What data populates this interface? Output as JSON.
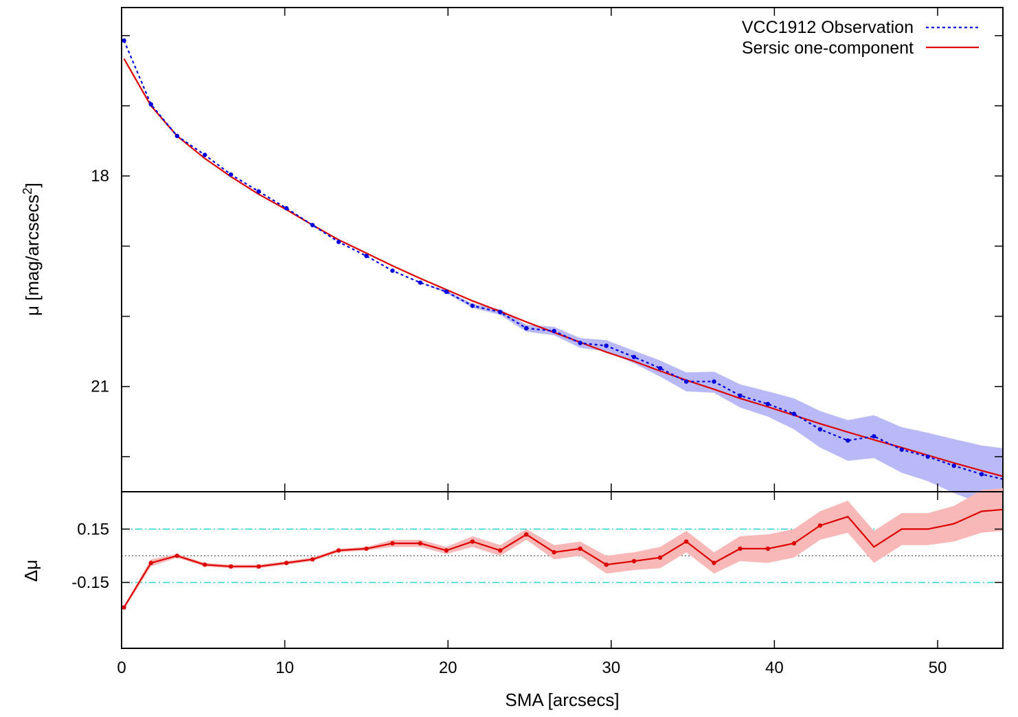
{
  "chart_data": [
    {
      "type": "line",
      "panel": "surface-brightness-profile",
      "ylabel": "μ [mag/arcsecs",
      "ylabel_sup": "2",
      "ylabel_close": "]",
      "xlim": [
        0,
        54
      ],
      "ylim": [
        22.5,
        15.6
      ],
      "y_inverted": true,
      "y_tick_labels": [
        "18",
        "21"
      ],
      "y_ticks": [
        16,
        17,
        18,
        19,
        20,
        21,
        22
      ],
      "y_tick_values": [
        18,
        21
      ],
      "grid": false,
      "legend_position": "top-right",
      "series": [
        {
          "name": "VCC1912 Observation",
          "style": "dotted",
          "color": "#0000dd",
          "x": [
            0.15,
            1.8,
            3.4,
            5.1,
            6.7,
            8.4,
            10.1,
            11.7,
            13.3,
            15.0,
            16.6,
            18.3,
            19.9,
            21.5,
            23.2,
            24.8,
            26.5,
            28.1,
            29.7,
            31.4,
            33.0,
            34.6,
            36.3,
            37.9,
            39.6,
            41.2,
            42.8,
            44.5,
            46.1,
            47.8,
            49.4,
            51.0,
            52.7,
            54.0
          ],
          "y": [
            16.07,
            16.98,
            17.43,
            17.7,
            17.98,
            18.22,
            18.46,
            18.7,
            18.94,
            19.14,
            19.35,
            19.52,
            19.65,
            19.85,
            19.94,
            20.17,
            20.21,
            20.38,
            20.42,
            20.58,
            20.74,
            20.93,
            20.93,
            21.13,
            21.25,
            21.39,
            21.61,
            21.77,
            21.71,
            21.9,
            22.0,
            22.13,
            22.25,
            22.32
          ],
          "error_low": [
            16.07,
            16.98,
            17.43,
            17.7,
            17.98,
            18.22,
            18.46,
            18.7,
            18.94,
            19.14,
            19.35,
            19.52,
            19.63,
            19.82,
            19.9,
            20.12,
            20.15,
            20.31,
            20.34,
            20.49,
            20.63,
            20.8,
            20.79,
            20.97,
            21.07,
            21.17,
            21.35,
            21.48,
            21.41,
            21.58,
            21.66,
            21.75,
            21.84,
            21.88
          ],
          "error_high": [
            16.07,
            16.98,
            17.43,
            17.7,
            17.98,
            18.22,
            18.46,
            18.7,
            18.94,
            19.14,
            19.35,
            19.52,
            19.67,
            19.88,
            19.98,
            20.22,
            20.27,
            20.45,
            20.5,
            20.67,
            20.86,
            21.07,
            21.09,
            21.3,
            21.43,
            21.61,
            21.87,
            22.06,
            22.02,
            22.23,
            22.35,
            22.52,
            22.67,
            22.78
          ],
          "band_color": "#b9b9f7"
        },
        {
          "name": "Sersic one-component",
          "style": "solid",
          "color": "#dd0000",
          "x": [
            0.15,
            1.8,
            3.4,
            5.1,
            6.7,
            8.4,
            10.1,
            11.7,
            13.3,
            15.0,
            16.6,
            18.3,
            19.9,
            21.5,
            23.2,
            24.8,
            26.5,
            28.1,
            29.7,
            31.4,
            33.0,
            34.6,
            36.3,
            37.9,
            39.6,
            41.2,
            42.8,
            44.5,
            46.1,
            47.8,
            49.4,
            51.0,
            52.7,
            54.0
          ],
          "y": [
            16.33,
            17.0,
            17.43,
            17.75,
            18.01,
            18.26,
            18.48,
            18.7,
            18.91,
            19.1,
            19.28,
            19.46,
            19.62,
            19.78,
            19.93,
            20.08,
            20.23,
            20.37,
            20.51,
            20.64,
            20.78,
            20.91,
            21.04,
            21.17,
            21.29,
            21.41,
            21.53,
            21.65,
            21.76,
            21.87,
            21.98,
            22.09,
            22.2,
            22.28
          ]
        }
      ]
    },
    {
      "type": "line",
      "panel": "residuals",
      "xlabel": "SMA [arcsecs]",
      "ylabel": "Δμ",
      "xlim": [
        0,
        54
      ],
      "ylim": [
        -0.52,
        0.36
      ],
      "x_ticks": [
        0,
        10,
        20,
        30,
        40,
        50
      ],
      "x_tick_labels": [
        "0",
        "10",
        "20",
        "30",
        "40",
        "50"
      ],
      "y_tick_labels": [
        "0.15",
        "-0.15"
      ],
      "y_tick_values": [
        0.15,
        -0.15
      ],
      "reference_lines": [
        {
          "y": 0.15,
          "style": "dash-dot",
          "color": "#00cccc"
        },
        {
          "y": -0.15,
          "style": "dash-dot",
          "color": "#00cccc"
        },
        {
          "y": 0.0,
          "style": "dotted",
          "color": "#555555"
        }
      ],
      "series": [
        {
          "name": "residual",
          "style": "solid-with-points",
          "color": "#dd0000",
          "band_color": "#f9b8b8",
          "x": [
            0.15,
            1.8,
            3.4,
            5.1,
            6.7,
            8.4,
            10.1,
            11.7,
            13.3,
            15.0,
            16.6,
            18.3,
            19.9,
            21.5,
            23.2,
            24.8,
            26.5,
            28.1,
            29.7,
            31.4,
            33.0,
            34.6,
            36.3,
            37.9,
            39.6,
            41.2,
            42.8,
            44.5,
            46.1,
            47.8,
            49.4,
            51.0,
            52.7,
            54.0
          ],
          "y": [
            -0.29,
            -0.04,
            0.0,
            -0.05,
            -0.06,
            -0.06,
            -0.04,
            -0.02,
            0.03,
            0.04,
            0.07,
            0.07,
            0.03,
            0.08,
            0.03,
            0.12,
            0.02,
            0.04,
            -0.05,
            -0.03,
            -0.01,
            0.08,
            -0.04,
            0.04,
            0.04,
            0.07,
            0.17,
            0.22,
            0.05,
            0.15,
            0.15,
            0.18,
            0.25,
            0.26
          ],
          "error": [
            0.01,
            0.02,
            0.01,
            0.01,
            0.01,
            0.01,
            0.01,
            0.01,
            0.01,
            0.01,
            0.02,
            0.02,
            0.02,
            0.03,
            0.03,
            0.03,
            0.04,
            0.04,
            0.05,
            0.05,
            0.06,
            0.06,
            0.06,
            0.07,
            0.08,
            0.08,
            0.08,
            0.09,
            0.09,
            0.09,
            0.09,
            0.1,
            0.12,
            0.12
          ]
        }
      ]
    }
  ]
}
